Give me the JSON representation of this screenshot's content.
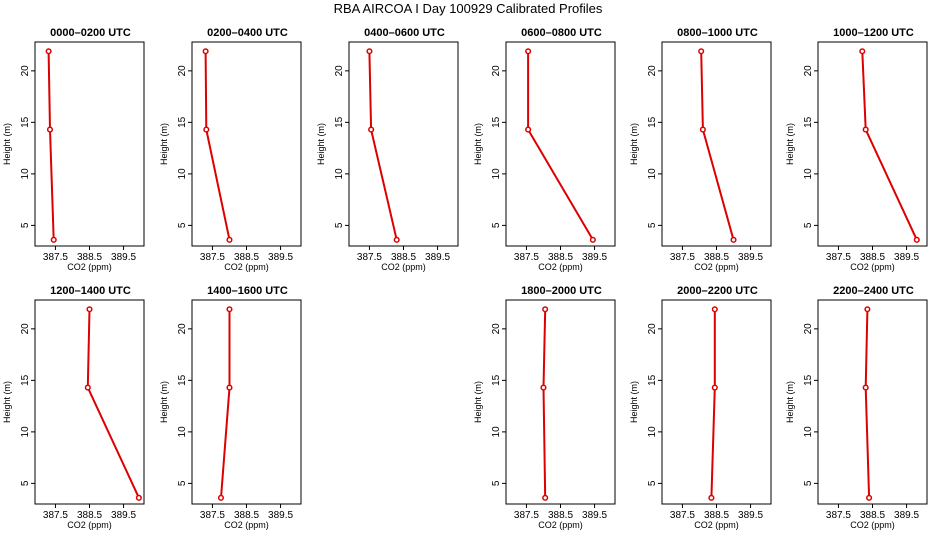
{
  "chart_data": {
    "type": "line",
    "title": "RBA AIRCOA I  Day 100929  Calibrated Profiles",
    "xlabel": "CO2 (ppm)",
    "ylabel": "Height (m)",
    "xlim": [
      386.9,
      390.1
    ],
    "ylim": [
      3,
      22.8
    ],
    "xticks": [
      "387.5",
      "388.5",
      "389.5"
    ],
    "xtick_values": [
      387.5,
      388.5,
      389.5
    ],
    "yticks": [
      "5",
      "10",
      "15",
      "20"
    ],
    "ytick_values": [
      5,
      10,
      15,
      20
    ],
    "heights": [
      21.9,
      14.3,
      3.6
    ],
    "line_color": "#dd0000",
    "grid": false,
    "panels": [
      {
        "title": "0000–0200 UTC",
        "co2": [
          387.3,
          387.34,
          387.45
        ]
      },
      {
        "title": "0200–0400 UTC",
        "co2": [
          387.3,
          387.32,
          388.0
        ]
      },
      {
        "title": "0400–0600 UTC",
        "co2": [
          387.5,
          387.55,
          388.3
        ]
      },
      {
        "title": "0600–0800 UTC",
        "co2": [
          387.55,
          387.55,
          389.45
        ]
      },
      {
        "title": "0800–1000 UTC",
        "co2": [
          388.05,
          388.1,
          389.0
        ]
      },
      {
        "title": "1000–1200 UTC",
        "co2": [
          388.2,
          388.3,
          389.8
        ]
      },
      {
        "title": "1200–1400 UTC",
        "co2": [
          388.5,
          388.45,
          389.95
        ]
      },
      {
        "title": "1400–1600 UTC",
        "co2": [
          388.0,
          388.0,
          387.75
        ]
      },
      {
        "title": "",
        "co2": []
      },
      {
        "title": "1800–2000 UTC",
        "co2": [
          388.05,
          388.0,
          388.05
        ]
      },
      {
        "title": "2000–2200 UTC",
        "co2": [
          388.45,
          388.45,
          388.35
        ]
      },
      {
        "title": "2200–2400 UTC",
        "co2": [
          388.35,
          388.3,
          388.4
        ]
      }
    ]
  }
}
